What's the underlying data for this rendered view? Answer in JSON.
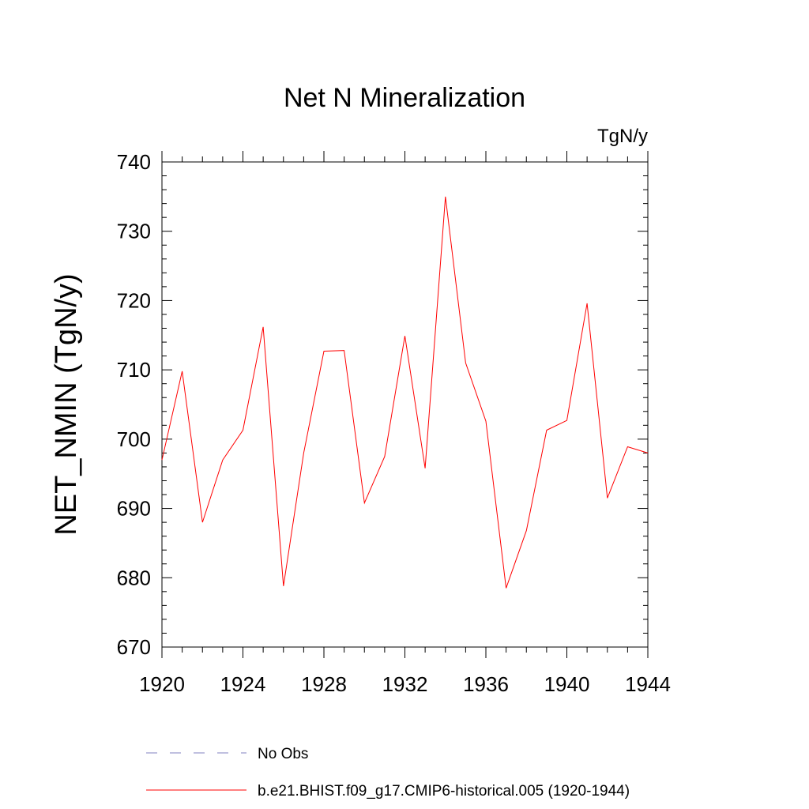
{
  "chart_data": {
    "type": "line",
    "title": "Net N Mineralization",
    "unit_label": "TgN/y",
    "xlabel": "",
    "ylabel": "NET_NMIN  (TgN/y)",
    "xlim": [
      1920,
      1944
    ],
    "ylim": [
      670,
      740
    ],
    "x_ticks": [
      "1920",
      "1924",
      "1928",
      "1932",
      "1936",
      "1940",
      "1944"
    ],
    "y_ticks": [
      "670",
      "680",
      "690",
      "700",
      "710",
      "720",
      "730",
      "740"
    ],
    "grid": false,
    "legend_position": "bottom",
    "series": [
      {
        "name": "No Obs",
        "style": "dashed",
        "color": "#8080c0",
        "x": [],
        "values": []
      },
      {
        "name": "b.e21.BHIST.f09_g17.CMIP6-historical.005 (1920-1944)",
        "style": "solid",
        "color": "#ff0000",
        "x": [
          1920,
          1921,
          1922,
          1923,
          1924,
          1925,
          1926,
          1927,
          1928,
          1929,
          1930,
          1931,
          1932,
          1933,
          1934,
          1935,
          1936,
          1937,
          1938,
          1939,
          1940,
          1941,
          1942,
          1943,
          1944
        ],
        "values": [
          697.0,
          709.8,
          688.0,
          697.0,
          701.3,
          716.2,
          678.8,
          698.0,
          712.7,
          712.8,
          690.8,
          697.5,
          714.9,
          695.8,
          735.0,
          711.0,
          702.6,
          678.5,
          686.8,
          701.3,
          702.7,
          719.6,
          691.5,
          698.9,
          698.0
        ]
      }
    ]
  }
}
